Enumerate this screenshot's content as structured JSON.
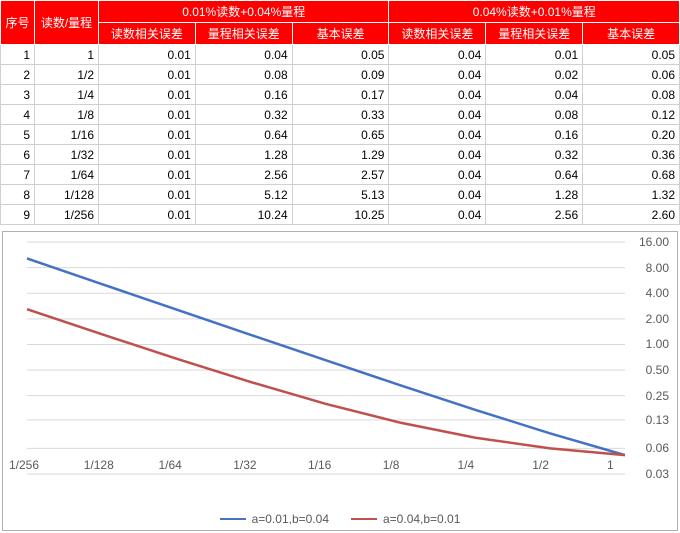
{
  "table": {
    "header_row1": {
      "c0": "序号",
      "c1": "读数/量程",
      "g1": "0.01%读数+0.04%量程",
      "g2": "0.04%读数+0.01%量程"
    },
    "header_row2": {
      "a": "读数相关误差",
      "b": "量程相关误差",
      "c": "基本误差",
      "d": "读数相关误差",
      "e": "量程相关误差",
      "f": "基本误差"
    },
    "rows": [
      {
        "idx": "1",
        "ratio": "1",
        "a": "0.01",
        "b": "0.04",
        "c": "0.05",
        "d": "0.04",
        "e": "0.01",
        "f": "0.05"
      },
      {
        "idx": "2",
        "ratio": "1/2",
        "a": "0.01",
        "b": "0.08",
        "c": "0.09",
        "d": "0.04",
        "e": "0.02",
        "f": "0.06"
      },
      {
        "idx": "3",
        "ratio": "1/4",
        "a": "0.01",
        "b": "0.16",
        "c": "0.17",
        "d": "0.04",
        "e": "0.04",
        "f": "0.08"
      },
      {
        "idx": "4",
        "ratio": "1/8",
        "a": "0.01",
        "b": "0.32",
        "c": "0.33",
        "d": "0.04",
        "e": "0.08",
        "f": "0.12"
      },
      {
        "idx": "5",
        "ratio": "1/16",
        "a": "0.01",
        "b": "0.64",
        "c": "0.65",
        "d": "0.04",
        "e": "0.16",
        "f": "0.20"
      },
      {
        "idx": "6",
        "ratio": "1/32",
        "a": "0.01",
        "b": "1.28",
        "c": "1.29",
        "d": "0.04",
        "e": "0.32",
        "f": "0.36"
      },
      {
        "idx": "7",
        "ratio": "1/64",
        "a": "0.01",
        "b": "2.56",
        "c": "2.57",
        "d": "0.04",
        "e": "0.64",
        "f": "0.68"
      },
      {
        "idx": "8",
        "ratio": "1/128",
        "a": "0.01",
        "b": "5.12",
        "c": "5.13",
        "d": "0.04",
        "e": "1.28",
        "f": "1.32"
      },
      {
        "idx": "9",
        "ratio": "1/256",
        "a": "0.01",
        "b": "10.24",
        "c": "10.25",
        "d": "0.04",
        "e": "2.56",
        "f": "2.60"
      }
    ]
  },
  "chart": {
    "type": "line",
    "x_categories": [
      "1/256",
      "1/128",
      "1/64",
      "1/32",
      "1/16",
      "1/8",
      "1/4",
      "1/2",
      "1"
    ],
    "y_scale": "log",
    "y_ticks": [
      0.03,
      0.06,
      0.13,
      0.25,
      0.5,
      1.0,
      2.0,
      4.0,
      8.0,
      16.0
    ],
    "y_tick_labels": [
      "0.03",
      "0.06",
      "0.13",
      "0.25",
      "0.50",
      "1.00",
      "2.00",
      "4.00",
      "8.00",
      "16.00"
    ],
    "grid_color": "#d9d9d9",
    "axis_text_color": "#595959",
    "label_fontsize": 12,
    "line_width": 2.5,
    "series": [
      {
        "name": "a=0.01,b=0.04",
        "color": "#4472c4",
        "values": [
          10.25,
          5.13,
          2.57,
          1.29,
          0.65,
          0.33,
          0.17,
          0.09,
          0.05
        ]
      },
      {
        "name": "a=0.04,b=0.01",
        "color": "#c0504d",
        "values": [
          2.6,
          1.32,
          0.68,
          0.36,
          0.2,
          0.12,
          0.08,
          0.06,
          0.05
        ]
      }
    ],
    "legend_position": "bottom"
  }
}
